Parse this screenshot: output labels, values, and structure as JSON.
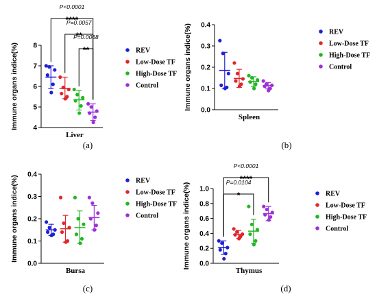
{
  "figure": {
    "legend": [
      {
        "name": "REV",
        "color": "#1f1fd6"
      },
      {
        "name": "Low-Dose TF",
        "color": "#e0262c"
      },
      {
        "name": "High-Dose TF",
        "color": "#23b623"
      },
      {
        "name": "Control",
        "color": "#9b30d8"
      }
    ]
  },
  "chart_data": [
    {
      "type": "scatter",
      "panel": "(a)",
      "category": "Liver",
      "ylabel": "Immune organs indice(%)",
      "ylim": [
        4,
        8
      ],
      "yticks": [
        "4",
        "5",
        "6",
        "7",
        "8"
      ],
      "groups": [
        {
          "name": "REV",
          "mean": 6.45,
          "sd_low": 5.9,
          "sd_high": 7.0,
          "points": [
            7.0,
            6.95,
            6.8,
            6.55,
            6.1,
            5.7
          ]
        },
        {
          "name": "Low-Dose TF",
          "mean": 5.9,
          "sd_low": 5.4,
          "sd_high": 6.45,
          "points": [
            6.45,
            5.95,
            5.85,
            5.65,
            5.5,
            5.4
          ]
        },
        {
          "name": "High-Dose TF",
          "mean": 5.35,
          "sd_low": 4.85,
          "sd_high": 5.8,
          "points": [
            5.85,
            5.6,
            5.45,
            5.3,
            5.05,
            4.7
          ]
        },
        {
          "name": "Control",
          "mean": 4.75,
          "sd_low": 4.35,
          "sd_high": 5.15,
          "points": [
            5.15,
            5.0,
            4.8,
            4.7,
            4.5,
            4.25
          ]
        }
      ],
      "annotations": [
        {
          "from": 0,
          "to": 3,
          "p": "P<0.0001",
          "stars": "****"
        },
        {
          "from": 1,
          "to": 3,
          "p": "P=0.0057",
          "stars": "**"
        },
        {
          "from": 2,
          "to": 3,
          "p": "P=0.0068",
          "stars": "**"
        }
      ]
    },
    {
      "type": "scatter",
      "panel": "(b)",
      "category": "Spleen",
      "ylabel": "Immune organs indice(%)",
      "ylim": [
        0,
        0.4
      ],
      "yticks": [
        "0.0",
        "0.1",
        "0.2",
        "0.3",
        "0.4"
      ],
      "groups": [
        {
          "name": "REV",
          "mean": 0.185,
          "sd_low": 0.1,
          "sd_high": 0.27,
          "points": [
            0.325,
            0.265,
            0.17,
            0.115,
            0.105,
            0.1
          ]
        },
        {
          "name": "Low-Dose TF",
          "mean": 0.147,
          "sd_low": 0.105,
          "sd_high": 0.19,
          "points": [
            0.22,
            0.17,
            0.145,
            0.135,
            0.12,
            0.11
          ]
        },
        {
          "name": "High-Dose TF",
          "mean": 0.132,
          "sd_low": 0.11,
          "sd_high": 0.155,
          "points": [
            0.16,
            0.15,
            0.14,
            0.13,
            0.12,
            0.1
          ]
        },
        {
          "name": "Control",
          "mean": 0.113,
          "sd_low": 0.098,
          "sd_high": 0.128,
          "points": [
            0.135,
            0.12,
            0.115,
            0.11,
            0.1,
            0.09
          ]
        }
      ],
      "annotations": []
    },
    {
      "type": "scatter",
      "panel": "(c)",
      "category": "Bursa",
      "ylabel": "Immune organs indice(%)",
      "ylim": [
        0,
        0.4
      ],
      "yticks": [
        "0.0",
        "0.1",
        "0.2",
        "0.3",
        "0.4"
      ],
      "groups": [
        {
          "name": "REV",
          "mean": 0.15,
          "sd_low": 0.125,
          "sd_high": 0.175,
          "points": [
            0.185,
            0.16,
            0.15,
            0.14,
            0.13,
            0.125
          ]
        },
        {
          "name": "Low-Dose TF",
          "mean": 0.155,
          "sd_low": 0.095,
          "sd_high": 0.215,
          "points": [
            0.295,
            0.18,
            0.16,
            0.14,
            0.1,
            0.095
          ]
        },
        {
          "name": "High-Dose TF",
          "mean": 0.16,
          "sd_low": 0.09,
          "sd_high": 0.235,
          "points": [
            0.295,
            0.2,
            0.175,
            0.13,
            0.11,
            0.09
          ]
        },
        {
          "name": "Control",
          "mean": 0.205,
          "sd_low": 0.15,
          "sd_high": 0.26,
          "points": [
            0.295,
            0.27,
            0.225,
            0.2,
            0.17,
            0.15
          ]
        }
      ],
      "annotations": []
    },
    {
      "type": "scatter",
      "panel": "(d)",
      "category": "Thymus",
      "ylabel": "Immune organs indice(%)",
      "ylim": [
        0,
        1.0
      ],
      "yticks": [
        "0.0",
        "0.2",
        "0.4",
        "0.6",
        "0.8",
        "1.0"
      ],
      "groups": [
        {
          "name": "REV",
          "mean": 0.21,
          "sd_low": 0.12,
          "sd_high": 0.3,
          "points": [
            0.3,
            0.27,
            0.21,
            0.18,
            0.13,
            0.06
          ]
        },
        {
          "name": "Low-Dose TF",
          "mean": 0.385,
          "sd_low": 0.33,
          "sd_high": 0.44,
          "points": [
            0.46,
            0.42,
            0.39,
            0.38,
            0.36,
            0.33
          ]
        },
        {
          "name": "High-Dose TF",
          "mean": 0.43,
          "sd_low": 0.27,
          "sd_high": 0.59,
          "points": [
            0.76,
            0.52,
            0.45,
            0.39,
            0.3,
            0.25
          ]
        },
        {
          "name": "Control",
          "mean": 0.665,
          "sd_low": 0.57,
          "sd_high": 0.76,
          "points": [
            0.76,
            0.72,
            0.68,
            0.65,
            0.62,
            0.58
          ]
        }
      ],
      "annotations": [
        {
          "from": 0,
          "to": 3,
          "p": "P<0.0001",
          "stars": "****"
        },
        {
          "from": 0,
          "to": 2,
          "p": "P=0.0104",
          "stars": "*"
        }
      ]
    }
  ]
}
